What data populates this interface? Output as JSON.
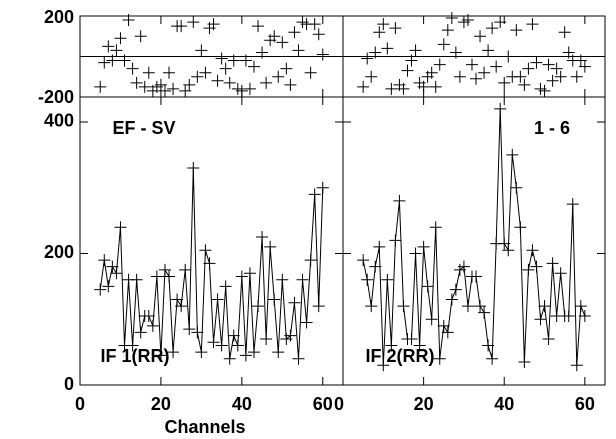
{
  "chart_data": [
    {
      "type": "line",
      "annotation": "EF - SV",
      "label": "IF 1(RR)",
      "xlabel": "Channels",
      "xlim": [
        0,
        65
      ],
      "xticks": [
        0,
        20,
        40,
        60
      ],
      "x": [
        5,
        6,
        7,
        8,
        9,
        10,
        11,
        12,
        13,
        14,
        15,
        16,
        17,
        18,
        19,
        20,
        21,
        22,
        23,
        24,
        25,
        26,
        27,
        28,
        29,
        30,
        31,
        32,
        33,
        34,
        35,
        36,
        37,
        38,
        39,
        40,
        41,
        42,
        43,
        44,
        45,
        46,
        47,
        48,
        49,
        50,
        51,
        52,
        53,
        54,
        55,
        56,
        57,
        58,
        59,
        60
      ],
      "phase": {
        "ylim": [
          -200,
          200
        ],
        "yticks": [
          -200,
          200
        ],
        "values": [
          -150,
          -30,
          50,
          -20,
          30,
          90,
          -20,
          180,
          -60,
          -130,
          100,
          -150,
          -80,
          -170,
          -150,
          -140,
          -170,
          -80,
          -160,
          150,
          150,
          -170,
          -140,
          170,
          -100,
          30,
          -80,
          140,
          160,
          -120,
          -10,
          -60,
          -130,
          -20,
          -160,
          -170,
          -20,
          -160,
          -50,
          150,
          20,
          -130,
          80,
          100,
          -100,
          70,
          -60,
          -140,
          120,
          30,
          170,
          160,
          -80,
          160,
          110,
          10
        ]
      },
      "amplitude": {
        "ylim": [
          0,
          438
        ],
        "yticks": [
          0,
          200,
          400
        ],
        "values": [
          145,
          190,
          150,
          180,
          170,
          240,
          60,
          160,
          60,
          160,
          80,
          105,
          105,
          90,
          165,
          45,
          175,
          165,
          50,
          130,
          120,
          175,
          85,
          330,
          80,
          50,
          205,
          185,
          65,
          130,
          60,
          150,
          40,
          75,
          60,
          165,
          45,
          170,
          50,
          120,
          225,
          70,
          210,
          130,
          50,
          160,
          70,
          75,
          125,
          40,
          160,
          95,
          190,
          290,
          120,
          300
        ]
      }
    },
    {
      "type": "line",
      "annotation": "1 - 6",
      "label": "IF 2(RR)",
      "xlim": [
        0,
        65
      ],
      "xticks": [
        0,
        20,
        40,
        60
      ],
      "x": [
        5,
        6,
        7,
        8,
        9,
        10,
        11,
        12,
        13,
        14,
        15,
        16,
        17,
        18,
        19,
        20,
        21,
        22,
        23,
        24,
        25,
        26,
        27,
        28,
        29,
        30,
        31,
        32,
        33,
        34,
        35,
        36,
        37,
        38,
        39,
        40,
        41,
        42,
        43,
        44,
        45,
        46,
        47,
        48,
        49,
        50,
        51,
        52,
        53,
        54,
        55,
        56,
        57,
        58,
        59,
        60
      ],
      "phase": {
        "ylim": [
          -200,
          200
        ],
        "yticks": [
          -200,
          200
        ],
        "values": [
          -150,
          -10,
          -100,
          20,
          120,
          160,
          40,
          -160,
          140,
          -140,
          -160,
          -70,
          -20,
          30,
          -130,
          -150,
          -100,
          -80,
          -150,
          -40,
          60,
          130,
          190,
          20,
          -100,
          170,
          180,
          -40,
          -110,
          100,
          -80,
          30,
          140,
          -50,
          170,
          -130,
          0,
          -100,
          130,
          -100,
          -140,
          -60,
          160,
          -30,
          -160,
          -170,
          -40,
          -120,
          -60,
          -100,
          120,
          20,
          -20,
          -100,
          -20,
          -50
        ]
      },
      "amplitude": {
        "ylim": [
          0,
          438
        ],
        "yticks": [
          0,
          200,
          400
        ],
        "values": [
          190,
          160,
          120,
          180,
          210,
          30,
          160,
          60,
          220,
          280,
          120,
          70,
          70,
          200,
          60,
          210,
          150,
          100,
          240,
          40,
          90,
          80,
          130,
          145,
          175,
          180,
          120,
          165,
          165,
          120,
          110,
          60,
          40,
          215,
          420,
          215,
          205,
          350,
          300,
          240,
          35,
          175,
          205,
          180,
          100,
          120,
          70,
          185,
          105,
          170,
          105,
          105,
          275,
          30,
          120,
          105
        ]
      }
    }
  ]
}
